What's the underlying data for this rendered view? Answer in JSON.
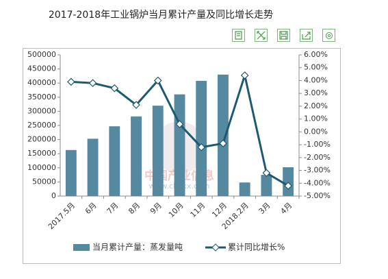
{
  "chart_data": {
    "type": "bar_line",
    "title": "2017-2018年工业锅炉当月累计产量及同比增长走势",
    "watermark": "中国产业信息",
    "watermark_url": "www.chyxx.com",
    "categories": [
      "2017.5月",
      "6月",
      "7月",
      "8月",
      "9月",
      "10月",
      "11月",
      "12月",
      "2018.2月",
      "3月",
      "4月"
    ],
    "series": [
      {
        "name": "当月累计产量：蒸发量吨",
        "type": "bar",
        "color": "#5589a0",
        "values": [
          163000,
          203000,
          247000,
          282000,
          320000,
          360000,
          408000,
          430000,
          48000,
          75000,
          102000
        ]
      },
      {
        "name": "累计同比增长%",
        "type": "line",
        "axis": "y2",
        "color": "#1d5a70",
        "values": [
          3.9,
          3.8,
          3.4,
          2.1,
          4.0,
          0.6,
          -1.2,
          -0.9,
          4.4,
          -3.2,
          -4.2
        ]
      }
    ],
    "ylim": [
      0,
      500000
    ],
    "yticks": [
      0,
      50000,
      100000,
      150000,
      200000,
      250000,
      300000,
      350000,
      400000,
      450000,
      500000
    ],
    "y2lim": [
      -5,
      6
    ],
    "y2ticks": [
      {
        "value": -5,
        "label": "-5.00%"
      },
      {
        "value": -4,
        "label": "-4.00%"
      },
      {
        "value": -3,
        "label": "-3.00%"
      },
      {
        "value": -2,
        "label": "-2.00%"
      },
      {
        "value": -1,
        "label": "-1.00%"
      },
      {
        "value": 0,
        "label": "0.00%"
      },
      {
        "value": 1,
        "label": "1.00%"
      },
      {
        "value": 2,
        "label": "2.00%"
      },
      {
        "value": 3,
        "label": "3.00%"
      },
      {
        "value": 4,
        "label": "4.00%"
      },
      {
        "value": 5,
        "label": "5.00%"
      },
      {
        "value": 6,
        "label": "6.00%"
      }
    ],
    "grid": false,
    "legend": "bottom"
  }
}
